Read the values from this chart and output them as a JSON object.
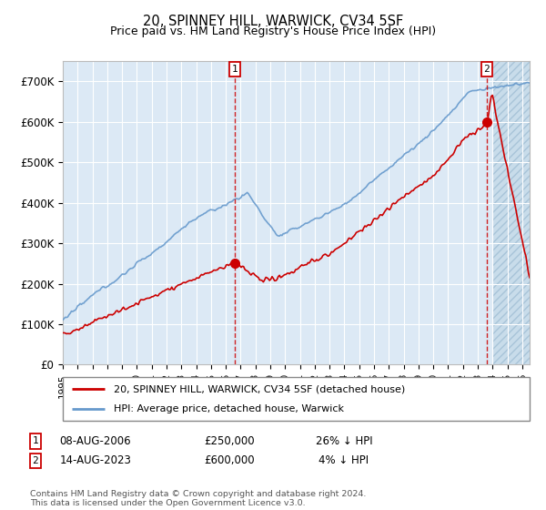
{
  "title": "20, SPINNEY HILL, WARWICK, CV34 5SF",
  "subtitle": "Price paid vs. HM Land Registry's House Price Index (HPI)",
  "plot_bg_color": "#dce9f5",
  "red_color": "#cc0000",
  "blue_color": "#6699cc",
  "ylim": [
    0,
    750000
  ],
  "yticks": [
    0,
    100000,
    200000,
    300000,
    400000,
    500000,
    600000,
    700000
  ],
  "ytick_labels": [
    "£0",
    "£100K",
    "£200K",
    "£300K",
    "£400K",
    "£500K",
    "£600K",
    "£700K"
  ],
  "xlim_start": 1995.0,
  "xlim_end": 2026.5,
  "sale1_year": 2006.6,
  "sale1_price": 250000,
  "sale2_year": 2023.6,
  "sale2_price": 600000,
  "legend_line1": "20, SPINNEY HILL, WARWICK, CV34 5SF (detached house)",
  "legend_line2": "HPI: Average price, detached house, Warwick",
  "table_row1": [
    "1",
    "08-AUG-2006",
    "£250,000",
    "26% ↓ HPI"
  ],
  "table_row2": [
    "2",
    "14-AUG-2023",
    "£600,000",
    "4% ↓ HPI"
  ],
  "footnote": "Contains HM Land Registry data © Crown copyright and database right 2024.\nThis data is licensed under the Open Government Licence v3.0."
}
